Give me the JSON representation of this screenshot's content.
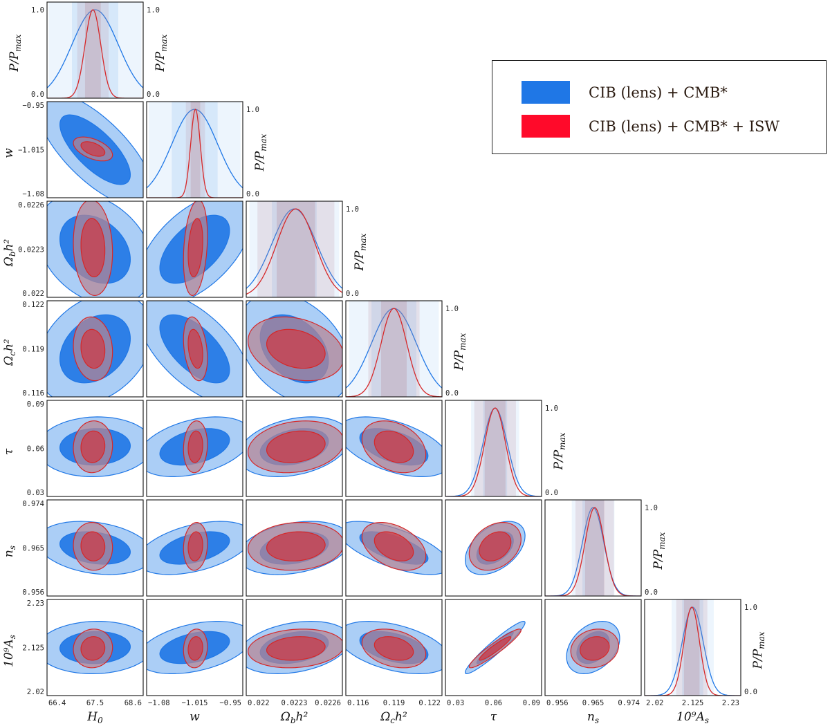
{
  "chart_data": {
    "type": "corner-plot",
    "parameters": [
      {
        "key": "H0",
        "label": "H",
        "sub": "0",
        "ticks": [
          "66.4",
          "67.5",
          "68.6"
        ],
        "range": [
          66.4,
          68.6
        ]
      },
      {
        "key": "w",
        "label": "w",
        "sub": "",
        "ticks": [
          "−1.08",
          "−1.015",
          "−0.95"
        ],
        "range": [
          -1.08,
          -0.95
        ]
      },
      {
        "key": "ombh2",
        "label": "Ω",
        "sub": "b",
        "sup": "h²",
        "ticks": [
          "0.022",
          "0.0223",
          "0.0226"
        ],
        "range": [
          0.022,
          0.0226
        ]
      },
      {
        "key": "omch2",
        "label": "Ω",
        "sub": "c",
        "sup": "h²",
        "ticks": [
          "0.116",
          "0.119",
          "0.122"
        ],
        "range": [
          0.116,
          0.122
        ]
      },
      {
        "key": "tau",
        "label": "τ",
        "sub": "",
        "ticks": [
          "0.03",
          "0.06",
          "0.09"
        ],
        "range": [
          0.03,
          0.09
        ]
      },
      {
        "key": "ns",
        "label": "n",
        "sub": "s",
        "ticks": [
          "0.956",
          "0.965",
          "0.974"
        ],
        "range": [
          0.956,
          0.974
        ]
      },
      {
        "key": "As",
        "label": "10⁹A",
        "sub": "s",
        "ticks": [
          "2.02",
          "2.125",
          "2.23"
        ],
        "range": [
          2.02,
          2.23
        ]
      }
    ],
    "diag_ylabel": "P/P",
    "diag_ylabel_sub": "max",
    "diag_ticks": [
      "0.0",
      "1.0"
    ],
    "series": [
      {
        "name": "CIB (lens) + CMB*",
        "color": "#1f77e6",
        "fill_inner": "#1f77e6",
        "fill_outer": "#9cc6f4",
        "mean": [
          67.5,
          -1.015,
          0.0223,
          0.119,
          0.061,
          0.965,
          2.125
        ],
        "sigma": [
          0.53,
          0.031,
          0.00014,
          0.0014,
          0.0075,
          0.002,
          0.023
        ],
        "corr": {
          "1-0": -0.72,
          "2-0": -0.3,
          "2-1": 0.55,
          "3-0": 0.3,
          "3-1": -0.62,
          "3-2": -0.35,
          "4-0": 0.05,
          "4-1": 0.38,
          "4-2": 0.3,
          "4-3": -0.5,
          "5-0": -0.25,
          "5-1": 0.45,
          "5-2": 0.3,
          "5-3": -0.65,
          "5-4": 0.45,
          "6-0": 0.05,
          "6-1": 0.4,
          "6-2": 0.3,
          "6-3": -0.45,
          "6-4": 0.95,
          "6-5": 0.35
        }
      },
      {
        "name": "CIB (lens) + CMB* + ISW",
        "color": "#d62728",
        "fill_inner": "#d03a44",
        "fill_outer": "#b58593",
        "mean": [
          67.45,
          -1.014,
          0.02231,
          0.119,
          0.061,
          0.9653,
          2.123
        ],
        "sigma": [
          0.18,
          0.0065,
          0.00012,
          0.0008,
          0.0065,
          0.0018,
          0.017
        ],
        "corr": {
          "1-0": -0.5,
          "2-0": -0.1,
          "2-1": 0.25,
          "3-0": -0.1,
          "3-1": -0.3,
          "3-2": -0.25,
          "4-0": 0.05,
          "4-1": 0.1,
          "4-2": 0.2,
          "4-3": -0.3,
          "5-0": -0.05,
          "5-1": 0.1,
          "5-2": 0.1,
          "5-3": -0.4,
          "5-4": 0.3,
          "6-0": 0.05,
          "6-1": 0.1,
          "6-2": 0.15,
          "6-3": -0.3,
          "6-4": 0.94,
          "6-5": 0.15
        }
      }
    ],
    "legend_position": "top-right"
  },
  "legend": {
    "items": [
      {
        "label": "CIB (lens) + CMB*",
        "color": "#1f77e6"
      },
      {
        "label": "CIB (lens) + CMB* + ISW",
        "color": "#ff0a2a"
      }
    ]
  }
}
